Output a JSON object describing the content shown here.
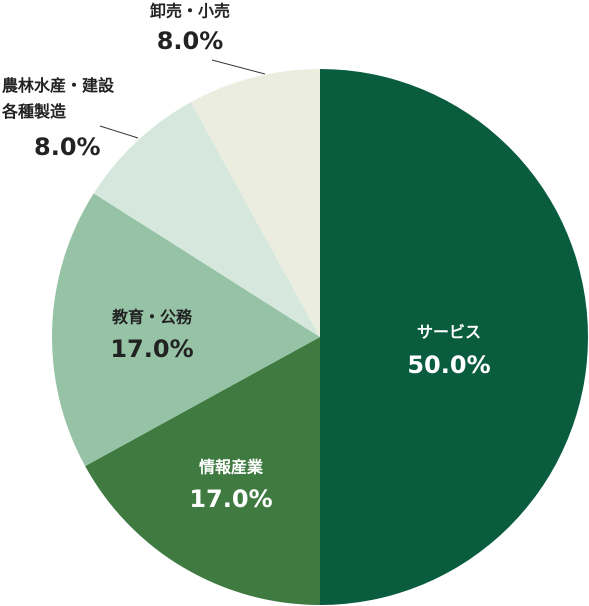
{
  "chart_data": {
    "type": "pie",
    "categories": [
      "サービス",
      "情報産業",
      "教育・公務",
      "農林水産・建設\n各種製造",
      "卸売・小売"
    ],
    "values": [
      50,
      17,
      17,
      8,
      8
    ],
    "value_labels": [
      "50.0%",
      "17.0%",
      "17.0%",
      "8.0%",
      "8.0%"
    ],
    "colors": [
      "#0a5c3e",
      "#3f7a40",
      "#96c3a5",
      "#d6e8de",
      "#ebeedf"
    ]
  }
}
